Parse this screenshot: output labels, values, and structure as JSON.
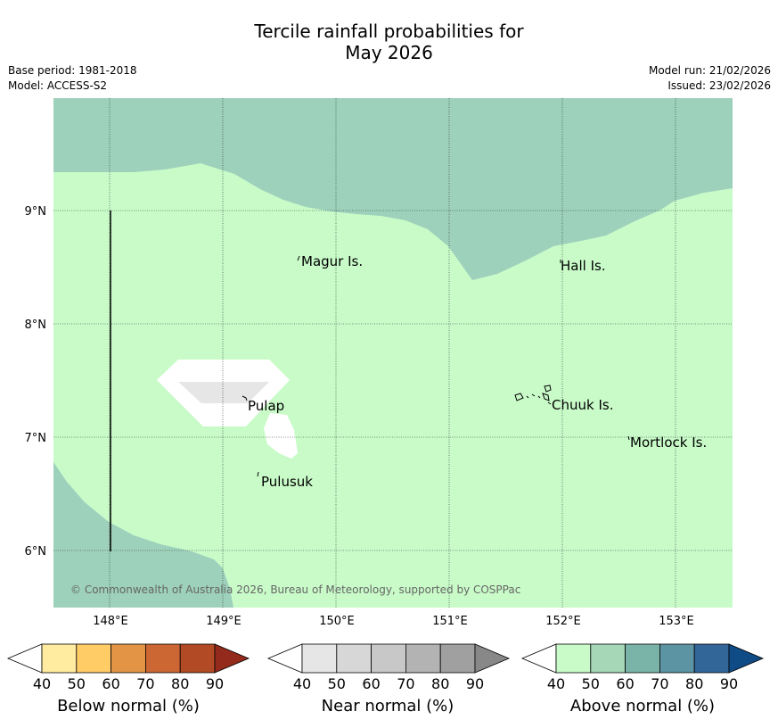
{
  "header": {
    "title_line1": "Tercile rainfall probabilities for",
    "title_line2": "May 2026",
    "base_period": "Base period: 1981-2018",
    "model": "Model: ACCESS-S2",
    "model_run": "Model run: 21/02/2026",
    "issued": "Issued: 23/02/2026"
  },
  "map": {
    "lon_ticks": [
      "148°E",
      "149°E",
      "150°E",
      "151°E",
      "152°E",
      "153°E"
    ],
    "lat_ticks": [
      "9°N",
      "8°N",
      "7°N",
      "6°N"
    ],
    "place_labels": [
      "Magur Is.",
      "Hall Is.",
      "Pulap",
      "Chuuk Is.",
      "Mortlock Is.",
      "Pulusuk"
    ],
    "copyright": "© Commonwealth of Australia 2026, Bureau of Meteorology, supported by COSPPac",
    "colors": {
      "above_40_50": "#c9fbc9",
      "above_50_60": "#9ed1bb",
      "near_40_50": "#e6e6e6",
      "below_40": "#ffffff"
    }
  },
  "colorbars": [
    {
      "name": "below",
      "title": "Below normal (%)",
      "ticks": [
        "40",
        "50",
        "60",
        "70",
        "80",
        "90"
      ],
      "colors": [
        "#ffeca0",
        "#ffcc66",
        "#e39545",
        "#cc6633",
        "#b34a26",
        "#932a1b"
      ]
    },
    {
      "name": "near",
      "title": "Near normal (%)",
      "ticks": [
        "40",
        "50",
        "60",
        "70",
        "80",
        "90"
      ],
      "colors": [
        "#e6e6e6",
        "#d7d7d7",
        "#c8c8c8",
        "#b3b3b3",
        "#a0a0a0",
        "#888888"
      ]
    },
    {
      "name": "above",
      "title": "Above normal (%)",
      "ticks": [
        "40",
        "50",
        "60",
        "70",
        "80",
        "90"
      ],
      "colors": [
        "#c9fbc9",
        "#a6d8b8",
        "#7ab3a8",
        "#5c94a3",
        "#326699",
        "#0f4b84"
      ]
    }
  ]
}
